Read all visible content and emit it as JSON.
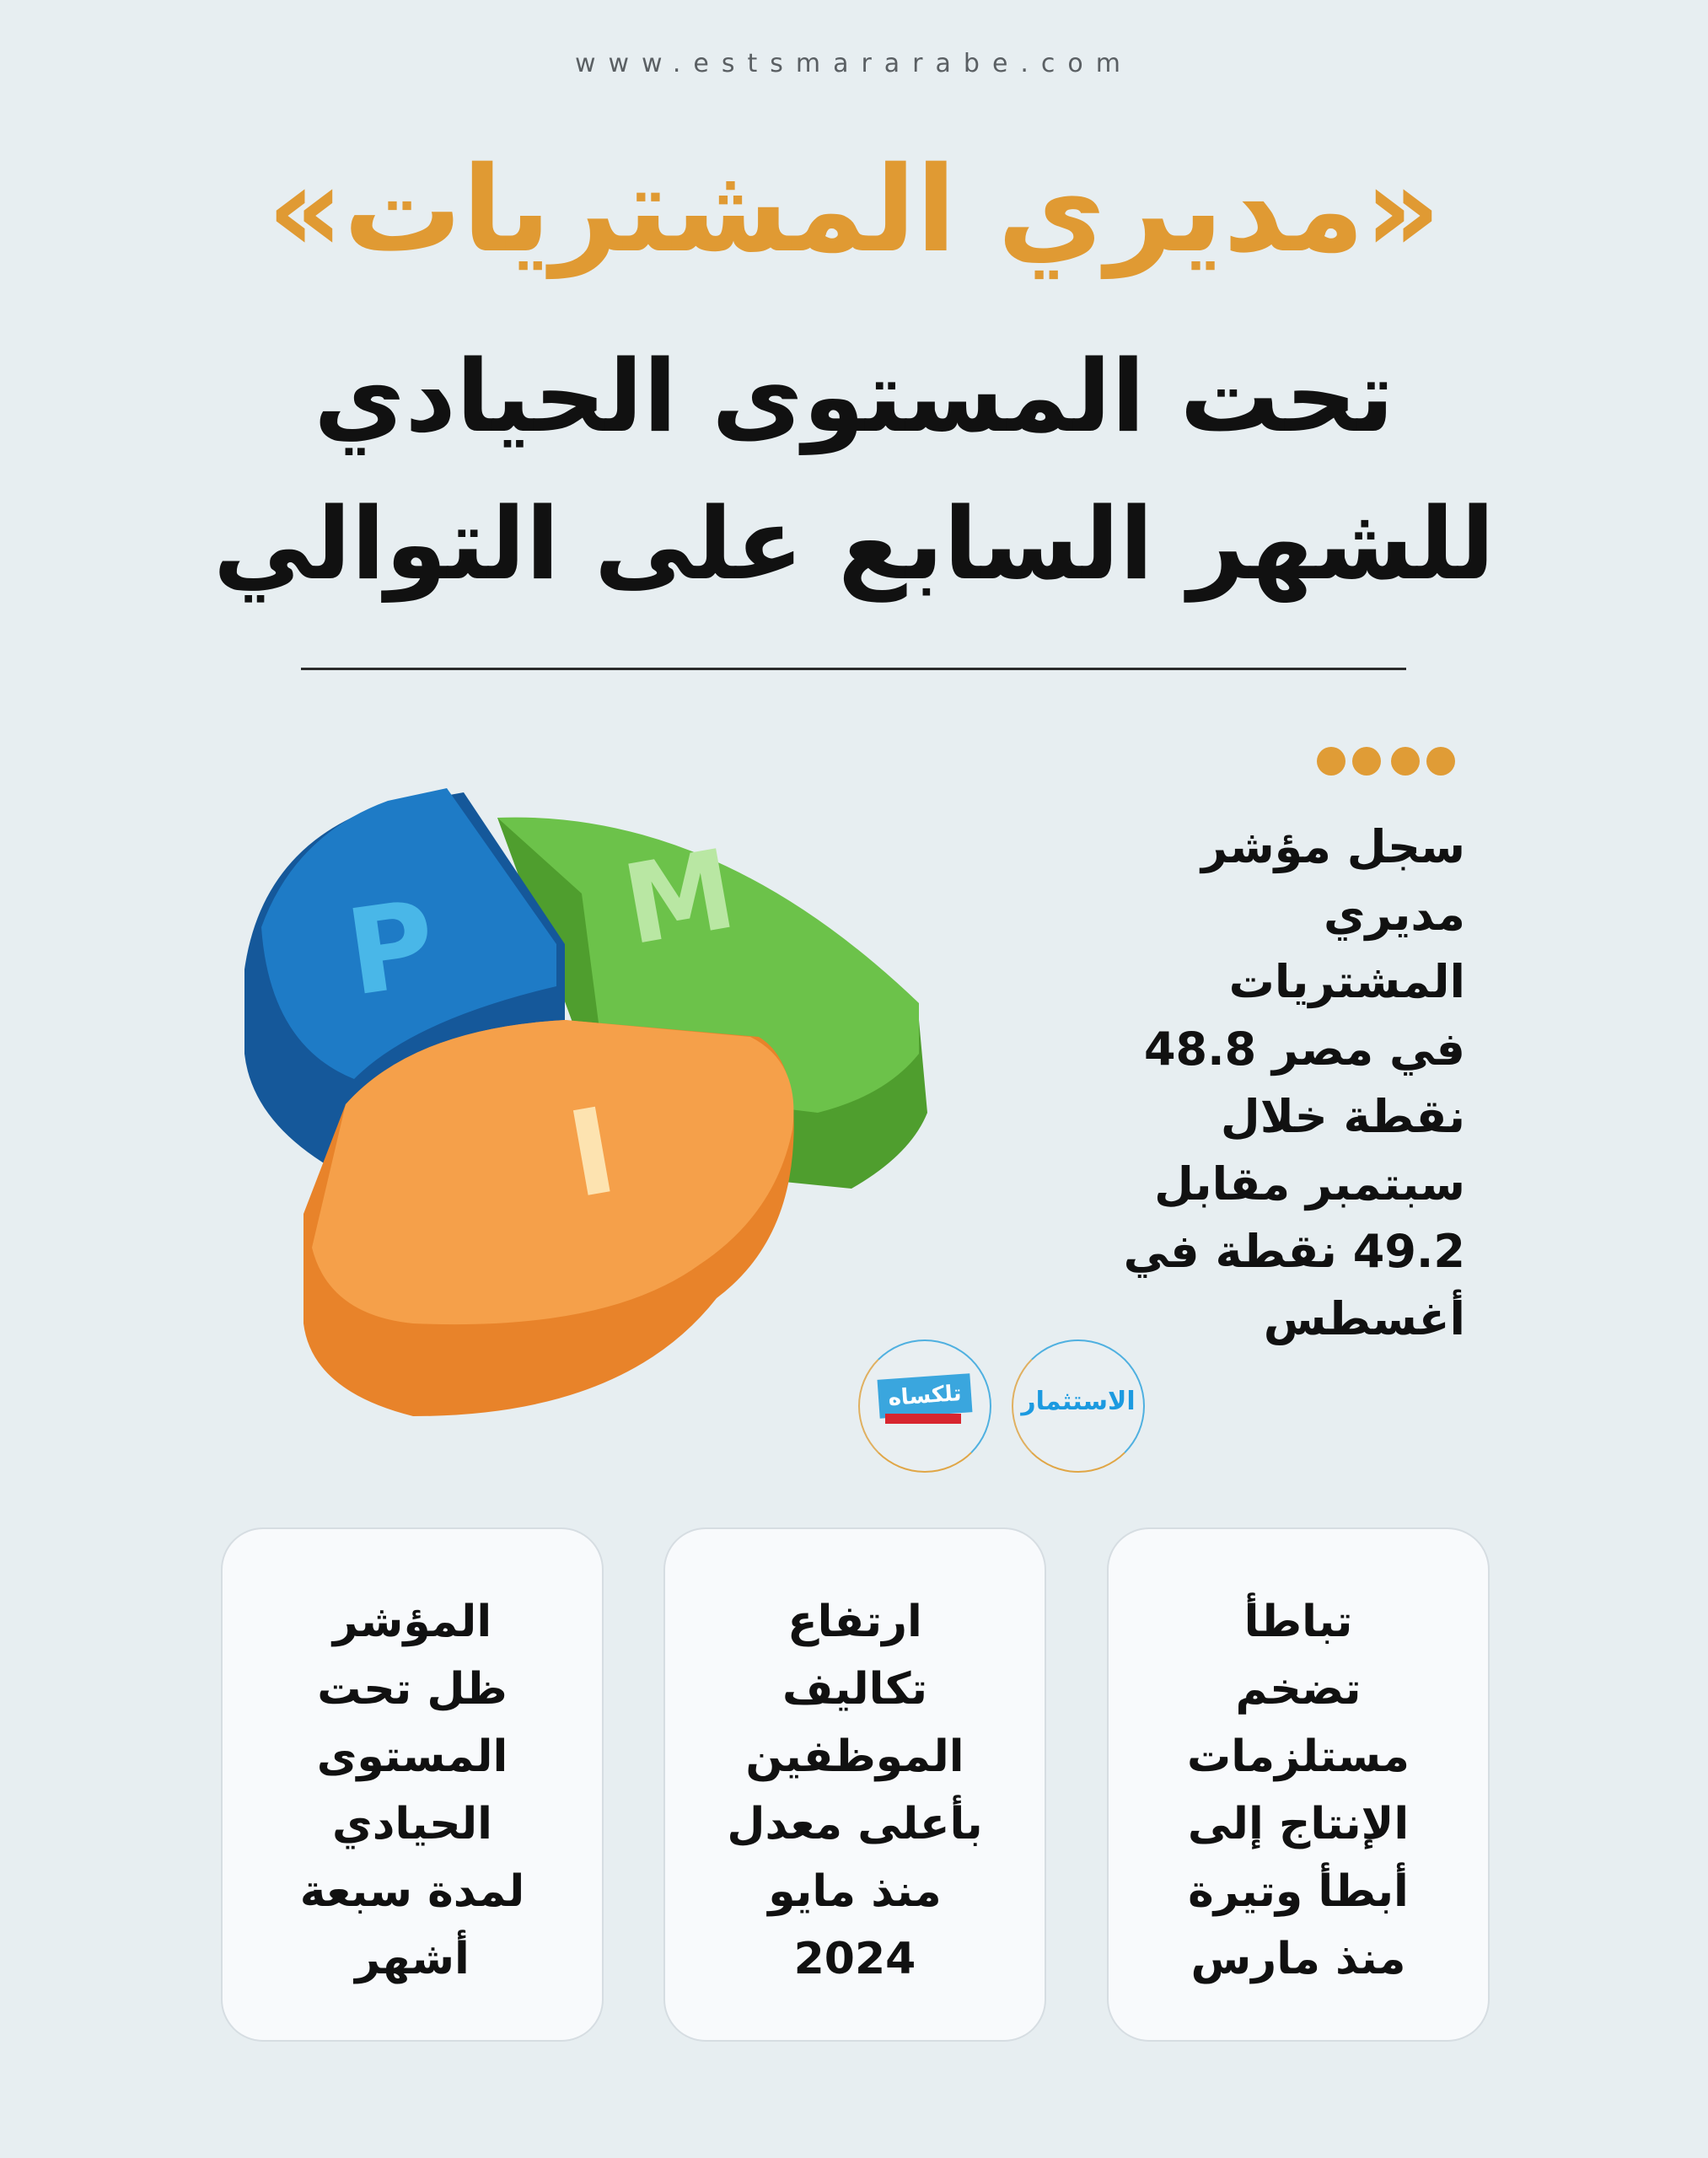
{
  "header": {
    "url": "www.estsmararabe.com",
    "title": "«مديري المشتريات»",
    "subtitle_line1": "تحت المستوى الحيادي",
    "subtitle_line2": "للشهر السابع على التوالي"
  },
  "main": {
    "paragraph_lines": [
      "سجل مؤشر",
      "مديري",
      "المشتريات",
      "في مصر 48.8",
      "نقطة خلال",
      "سبتمبر مقابل",
      "49.2 نقطة في",
      "أغسطس"
    ],
    "image_letters": [
      "P",
      "M",
      "I"
    ],
    "logos": [
      {
        "name": "تلكساه",
        "icon": "talkasah-logo"
      },
      {
        "name": "الاستثمار",
        "icon": "estithmar-logo"
      }
    ]
  },
  "cards": [
    {
      "text": "تباطأ\nتضخم\nمستلزمات\nالإنتاج إلى\nأبطأ وتيرة\nمنذ مارس"
    },
    {
      "text": "ارتفاع\nتكاليف\nالموظفين\nبأعلى معدل\nمنذ مايو\n2024"
    },
    {
      "text": "المؤشر\nظل تحت\nالمستوى\nالحيادي\nلمدة سبعة\nأشهر"
    }
  ],
  "colors": {
    "accent": "#e09a33",
    "background": "#e7eef1",
    "text": "#111111"
  }
}
